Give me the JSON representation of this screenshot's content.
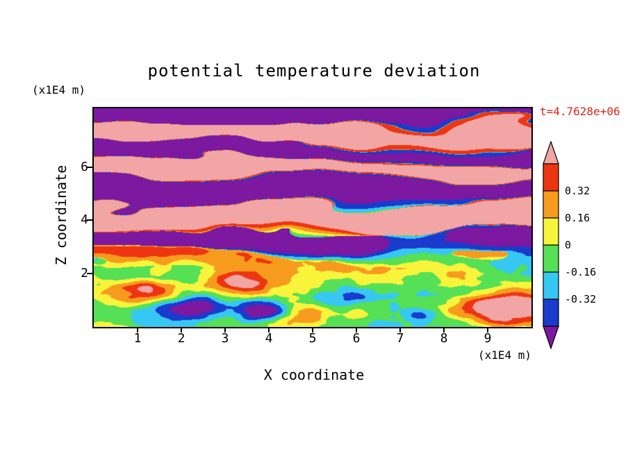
{
  "title": "potential temperature deviation",
  "timestamp": "t=4.7628e+06",
  "axes": {
    "x": {
      "label": "X coordinate",
      "units": "(x1E4 m)",
      "ticks": [
        "1",
        "2",
        "3",
        "4",
        "5",
        "6",
        "7",
        "8",
        "9"
      ]
    },
    "z": {
      "label": "Z coordinate",
      "units": "(x1E4 m)",
      "ticks": [
        "2",
        "4",
        "6"
      ]
    }
  },
  "colorbar": {
    "tick_labels": [
      "0.32",
      "0.16",
      "0",
      "-0.16",
      "-0.32"
    ]
  },
  "chart_data": {
    "type": "heatmap",
    "title": "potential temperature deviation",
    "xlabel": "X coordinate",
    "ylabel": "Z coordinate",
    "x_units": "(x1E4 m)",
    "z_units": "(x1E4 m)",
    "x_ticks": [
      1,
      2,
      3,
      4,
      5,
      6,
      7,
      8,
      9
    ],
    "z_ticks": [
      2,
      4,
      6
    ],
    "x_range": [
      0,
      10
    ],
    "z_range": [
      0,
      8.2
    ],
    "time_annotation": "t=4.7628e+06",
    "contour_levels": [
      -0.32,
      -0.16,
      0,
      0.16,
      0.32
    ],
    "colorbar_bins": [
      {
        "range": "< -0.48",
        "color": "#7d18a0",
        "name": "purple"
      },
      {
        "range": "-0.48 to -0.32",
        "color": "#1a3bcd",
        "name": "dark-blue"
      },
      {
        "range": "-0.32 to -0.16",
        "color": "#36c8f3",
        "name": "cyan"
      },
      {
        "range": "-0.16 to 0",
        "color": "#55e055",
        "name": "green"
      },
      {
        "range": "0 to 0.16",
        "color": "#f8f43c",
        "name": "yellow"
      },
      {
        "range": "0.16 to 0.32",
        "color": "#f79b1e",
        "name": "orange"
      },
      {
        "range": "0.32 to 0.48",
        "color": "#ee3512",
        "name": "red"
      },
      {
        "range": "> 0.48",
        "color": "#f2a5a5",
        "name": "pink"
      }
    ],
    "legend_position": "right",
    "field_description": "Filled-contour field: stratified pink/purple wave bands in the upper half, turbulent green/cyan/yellow mixing with red cores and dark-blue eddies in the lower quarter."
  }
}
